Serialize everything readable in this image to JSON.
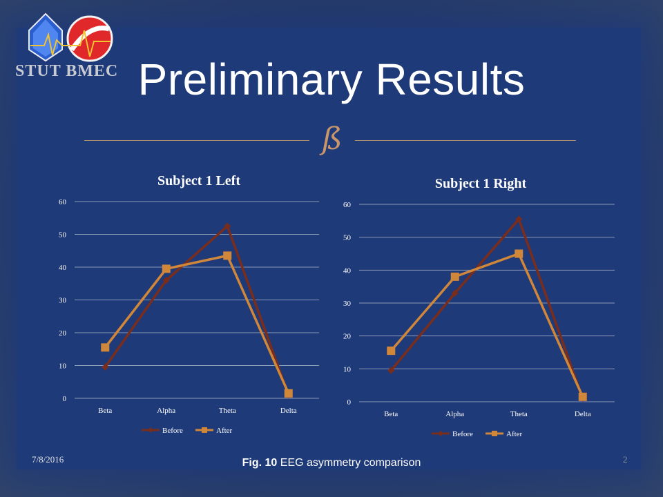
{
  "slide": {
    "title": "Preliminary Results",
    "logo_text": "STUT BMEC",
    "flourish": "ß",
    "date": "7/8/2016",
    "page_number": "2",
    "caption_bold": "Fig. 10",
    "caption_text": "EEG asymmetry comparison"
  },
  "colors": {
    "before": "#7b2d1c",
    "after": "#d0873a",
    "gridline": "#8c9bb8"
  },
  "chart_data": [
    {
      "type": "line",
      "title": "Subject 1 Left",
      "categories": [
        "Beta",
        "Alpha",
        "Theta",
        "Delta"
      ],
      "ylim": [
        0,
        60
      ],
      "yticks": [
        0,
        10,
        20,
        30,
        40,
        50,
        60
      ],
      "grid": true,
      "legend": "bottom",
      "series": [
        {
          "name": "Before",
          "values": [
            9.5,
            36,
            52.5,
            1
          ],
          "marker": "diamond"
        },
        {
          "name": "After",
          "values": [
            15.5,
            39.5,
            43.5,
            1.5
          ],
          "marker": "square"
        }
      ]
    },
    {
      "type": "line",
      "title": "Subject 1 Right",
      "categories": [
        "Beta",
        "Alpha",
        "Theta",
        "Delta"
      ],
      "ylim": [
        0,
        60
      ],
      "yticks": [
        0,
        10,
        20,
        30,
        40,
        50,
        60
      ],
      "grid": true,
      "legend": "bottom",
      "series": [
        {
          "name": "Before",
          "values": [
            9.5,
            33,
            55.5,
            1
          ],
          "marker": "diamond"
        },
        {
          "name": "After",
          "values": [
            15.5,
            38,
            45,
            1.5
          ],
          "marker": "square"
        }
      ]
    }
  ]
}
